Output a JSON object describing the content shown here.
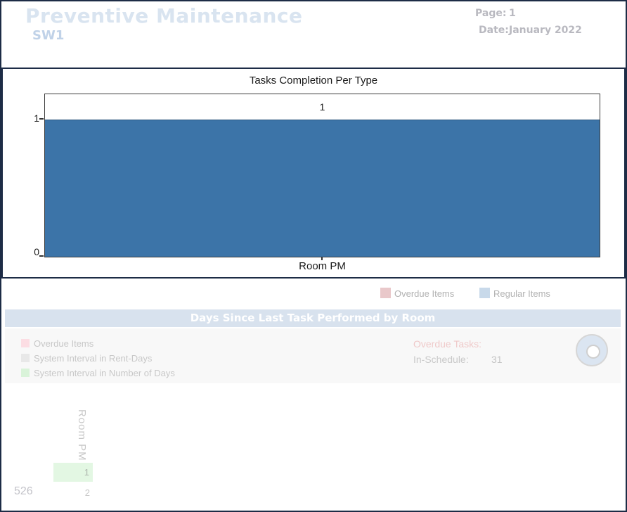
{
  "header": {
    "title": "Preventive Maintenance",
    "subtitle": "SW1",
    "page_label": "Page:",
    "page_value": "1",
    "date_label": "Date:",
    "date_value": "January 2022"
  },
  "tasks_chart": {
    "title": "Tasks Completion Per Type",
    "bar_value_label": "1",
    "y_tick_top": "1",
    "y_tick_bottom": "0",
    "x_tick_label": "Room PM",
    "bar_color": "#3c74a8",
    "legend": [
      {
        "label": "Overdue Items",
        "color": "#e9c8ca"
      },
      {
        "label": "Regular Items",
        "color": "#c8d9ea"
      }
    ]
  },
  "days_section": {
    "banner_title": "Days Since Last Task Performed by Room",
    "banner_bg": "#d8e2ee",
    "legend": [
      {
        "label": "Overdue Items",
        "color": "#fcdde3"
      },
      {
        "label": "System Interval in Rent-Days",
        "color": "#e8e8e8"
      },
      {
        "label": "System Interval in Number of Days",
        "color": "#d9f3d9"
      }
    ],
    "stats": {
      "overdue_label": "Overdue Tasks:",
      "in_schedule_label": "In-Schedule:",
      "in_schedule_value": "31"
    },
    "donut_icon_color": "#dbe5f1",
    "table": {
      "column_header": "Room PM",
      "cell_value": "1",
      "cell_bg": "#e3f7e3",
      "row_side_label": "526",
      "second_value": "2"
    }
  },
  "chart_data": [
    {
      "type": "bar",
      "title": "Tasks Completion Per Type",
      "categories": [
        "Room PM"
      ],
      "series": [
        {
          "name": "Regular Items",
          "values": [
            1
          ],
          "color": "#3c74a8"
        },
        {
          "name": "Overdue Items",
          "values": [
            0
          ],
          "color": "#e9c8ca"
        }
      ],
      "xlabel": "",
      "ylabel": "",
      "yticks": [
        0,
        1
      ],
      "ylim": [
        0,
        1.2
      ],
      "grid": false,
      "legend_position": "below",
      "data_labels": [
        "1"
      ]
    },
    {
      "type": "table",
      "title": "Days Since Last Task Performed by Room",
      "columns": [
        "Room PM"
      ],
      "rows": [
        [
          "1"
        ],
        [
          "2"
        ]
      ],
      "side_value": "526",
      "stats": {
        "Overdue Tasks": "",
        "In-Schedule": "31"
      }
    }
  ]
}
